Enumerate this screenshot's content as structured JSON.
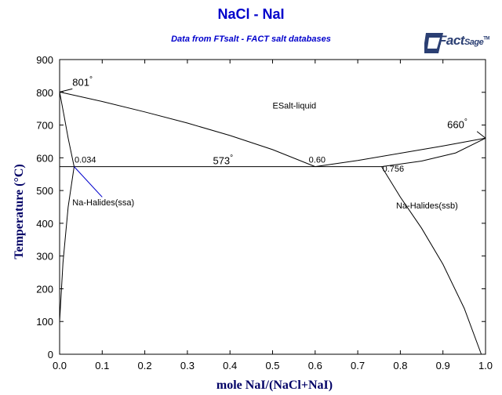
{
  "chart_data": {
    "type": "line",
    "title": "NaCl - NaI",
    "subtitle": "Data from FTsalt - FACT salt databases",
    "xlabel": "mole NaI/(NaCl+NaI)",
    "ylabel": "Temperature (°C)",
    "xlim": [
      0,
      1
    ],
    "ylim": [
      0,
      900
    ],
    "x_ticks": [
      "0.0",
      "0.1",
      "0.2",
      "0.3",
      "0.4",
      "0.5",
      "0.6",
      "0.7",
      "0.8",
      "0.9",
      "1.0"
    ],
    "y_ticks": [
      "0",
      "100",
      "200",
      "300",
      "400",
      "500",
      "600",
      "700",
      "800",
      "900"
    ],
    "grid": false,
    "series": [
      {
        "values": [
          [
            0.0,
            801
          ],
          [
            0.1,
            772
          ],
          [
            0.2,
            740
          ],
          [
            0.3,
            706
          ],
          [
            0.4,
            668
          ],
          [
            0.5,
            625
          ],
          [
            0.6,
            573
          ]
        ]
      },
      {
        "values": [
          [
            0.6,
            573
          ],
          [
            0.7,
            592
          ],
          [
            0.8,
            614
          ],
          [
            0.9,
            636
          ],
          [
            1.0,
            660
          ]
        ]
      },
      {
        "values": [
          [
            0.0,
            801
          ],
          [
            0.01,
            732
          ],
          [
            0.02,
            660
          ],
          [
            0.034,
            573
          ]
        ]
      },
      {
        "values": [
          [
            0.0,
            100
          ],
          [
            0.008,
            280
          ],
          [
            0.02,
            450
          ],
          [
            0.034,
            573
          ]
        ]
      },
      {
        "values": [
          [
            0.756,
            573
          ],
          [
            0.85,
            590
          ],
          [
            0.93,
            615
          ],
          [
            1.0,
            660
          ]
        ]
      },
      {
        "values": [
          [
            0.756,
            573
          ],
          [
            0.8,
            480
          ],
          [
            0.85,
            385
          ],
          [
            0.9,
            275
          ],
          [
            0.95,
            140
          ],
          [
            0.99,
            0
          ]
        ]
      },
      {
        "values": [
          [
            0.0,
            573
          ],
          [
            0.756,
            573
          ]
        ]
      }
    ],
    "annotations": [
      {
        "text": "801",
        "degree": "°",
        "x": 0.03,
        "y": 820,
        "class": "annot-big"
      },
      {
        "text": "660",
        "degree": "°",
        "x": 0.91,
        "y": 690,
        "class": "annot-big"
      },
      {
        "text": "573",
        "degree": "°",
        "x": 0.36,
        "y": 580,
        "class": "annot-big"
      },
      {
        "text": "0.034",
        "x": 0.035,
        "y": 585,
        "class": "annot"
      },
      {
        "text": "0.60",
        "x": 0.585,
        "y": 585,
        "class": "annot"
      },
      {
        "text": "0.756",
        "x": 0.758,
        "y": 558,
        "class": "annot"
      },
      {
        "text": "ESalt-liquid",
        "x": 0.5,
        "y": 750,
        "class": "annot"
      },
      {
        "text": "Na-Halides(ssa)",
        "x": 0.03,
        "y": 455,
        "class": "annot",
        "color": "#0000cc"
      },
      {
        "text": "Na-Halides(ssb)",
        "x": 0.79,
        "y": 445,
        "class": "annot"
      }
    ],
    "colors": {
      "title": "#0000cc",
      "axis_title": "#000066",
      "lines": "#000000"
    }
  },
  "logo": {
    "text_main": "Fact",
    "text_sage": "Sage",
    "tm": "TM"
  }
}
